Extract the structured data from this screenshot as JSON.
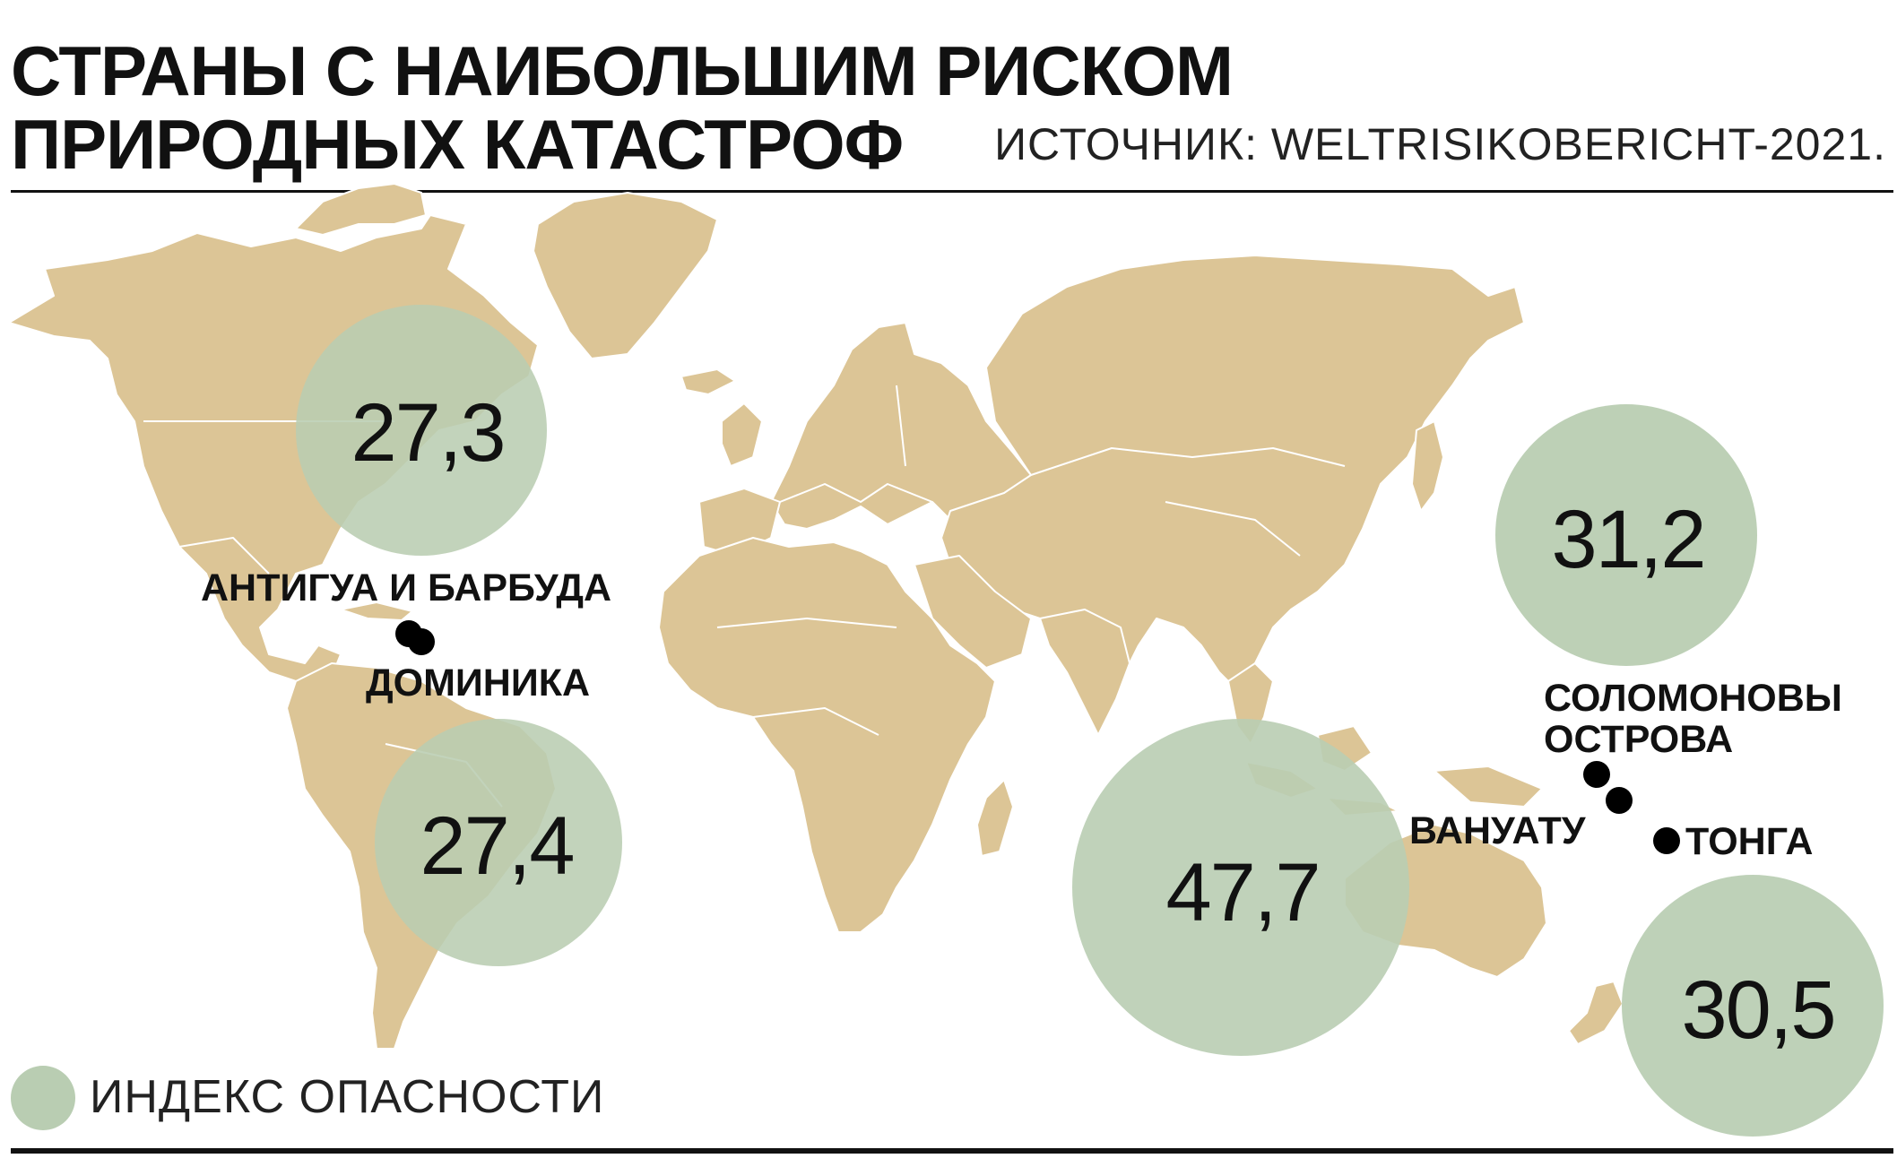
{
  "header": {
    "title_line1": "СТРАНЫ С НАИБОЛЬШИМ РИСКОМ",
    "title_line2": "ПРИРОДНЫХ КАТАСТРОФ",
    "source": "ИСТОЧНИК: WELTRISIKOBERICHT-2021."
  },
  "colors": {
    "land": "#dcc596",
    "border": "#ffffff",
    "risk_circle": "#b9cdb2",
    "marker": "#000000"
  },
  "risk_bubbles": [
    {
      "value": "27,3",
      "value_num": 27.3
    },
    {
      "value": "27,4",
      "value_num": 27.4
    },
    {
      "value": "31,2",
      "value_num": 31.2
    },
    {
      "value": "47,7",
      "value_num": 47.7
    },
    {
      "value": "30,5",
      "value_num": 30.5
    }
  ],
  "country_labels": {
    "antigua": "АНТИГУА И БАРБУДА",
    "dominica": "ДОМИНИКА",
    "solomon_line1": "СОЛОМОНОВЫ",
    "solomon_line2": "ОСТРОВА",
    "vanuatu": "ВАНУАТУ",
    "tonga": "ТОНГА"
  },
  "legend": {
    "label": "ИНДЕКС ОПАСНОСТИ",
    "icon": "circle-swatch"
  }
}
